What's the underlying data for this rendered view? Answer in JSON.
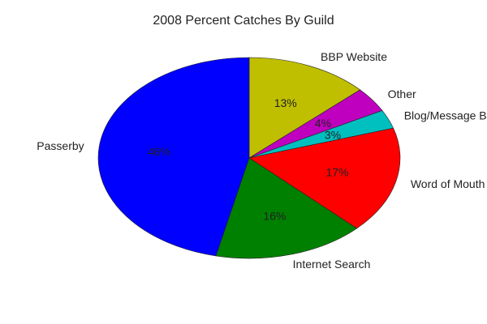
{
  "chart_data": {
    "type": "pie",
    "title": "2008 Percent Catches By Guild",
    "slices": [
      {
        "label": "BBP Website",
        "value": 13,
        "pct_label": "13%",
        "color": "#bfbf00"
      },
      {
        "label": "Other",
        "value": 4,
        "pct_label": "4%",
        "color": "#bf00bf"
      },
      {
        "label": "Blog/Message B",
        "value": 3,
        "pct_label": "3%",
        "color": "#00bfbf"
      },
      {
        "label": "Word of Mouth",
        "value": 17,
        "pct_label": "17%",
        "color": "#ff0000"
      },
      {
        "label": "Internet Search",
        "value": 16,
        "pct_label": "16%",
        "color": "#008000"
      },
      {
        "label": "Passerby",
        "value": 46,
        "pct_label": "46%",
        "color": "#0000ff"
      }
    ],
    "legend": "none"
  }
}
